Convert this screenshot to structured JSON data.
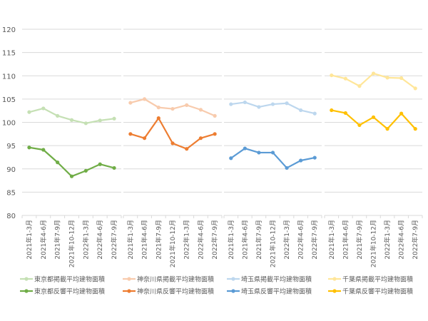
{
  "chart_data": {
    "type": "line",
    "ylim": [
      80,
      120
    ],
    "yticks": [
      80,
      85,
      90,
      95,
      100,
      105,
      110,
      115,
      120
    ],
    "grid": true,
    "legend_placement": "bottom",
    "panels": [
      {
        "categories": [
          "2021年1-3月",
          "2021年4-6月",
          "2021年7-9月",
          "2021年10-12月",
          "2022年1-3月",
          "2022年4-6月",
          "2022年7-9月"
        ],
        "series": [
          {
            "name": "東京都掲載平均建物面積",
            "color": "#c5e0b4",
            "values": [
              102.2,
              103.0,
              101.4,
              100.5,
              99.8,
              100.4,
              100.8
            ]
          },
          {
            "name": "東京都反響平均建物面積",
            "color": "#70ad47",
            "values": [
              94.6,
              94.1,
              91.4,
              88.4,
              89.6,
              91.0,
              90.2
            ]
          }
        ]
      },
      {
        "categories": [
          "2021年1-3月",
          "2021年4-6月",
          "2021年7-9月",
          "2021年10-12月",
          "2022年1-3月",
          "2022年4-6月",
          "2022年7-9月"
        ],
        "series": [
          {
            "name": "神奈川県掲載平均建物面積",
            "color": "#f8cbad",
            "values": [
              104.2,
              105.0,
              103.2,
              102.9,
              103.7,
              102.7,
              101.4
            ]
          },
          {
            "name": "神奈川県反響平均建物面積",
            "color": "#ed7d31",
            "values": [
              97.5,
              96.6,
              100.9,
              95.5,
              94.3,
              96.6,
              97.5
            ]
          }
        ]
      },
      {
        "categories": [
          "2021年1-3月",
          "2021年4-6月",
          "2021年7-9月",
          "2021年10-12月",
          "2022年1-3月",
          "2022年4-6月",
          "2022年7-9月"
        ],
        "series": [
          {
            "name": "埼玉県掲載平均建物面積",
            "color": "#bdd7ee",
            "values": [
              103.9,
              104.3,
              103.3,
              103.9,
              104.1,
              102.6,
              101.9
            ]
          },
          {
            "name": "埼玉県反響平均建物面積",
            "color": "#5b9bd5",
            "values": [
              92.3,
              94.4,
              93.5,
              93.5,
              90.2,
              91.8,
              92.4
            ]
          }
        ]
      },
      {
        "categories": [
          "2021年1-3月",
          "2021年4-6月",
          "2021年7-9月",
          "2021年10-12月",
          "2022年1-3月",
          "2022年4-6月",
          "2022年7-9月"
        ],
        "series": [
          {
            "name": "千葉県掲載平均建物面積",
            "color": "#ffe699",
            "values": [
              110.1,
              109.4,
              107.8,
              110.5,
              109.6,
              109.5,
              107.3
            ]
          },
          {
            "name": "千葉県反響平均建物面積",
            "color": "#ffc000",
            "values": [
              102.6,
              102.0,
              99.4,
              101.1,
              98.6,
              101.9,
              98.6
            ]
          }
        ]
      }
    ]
  }
}
